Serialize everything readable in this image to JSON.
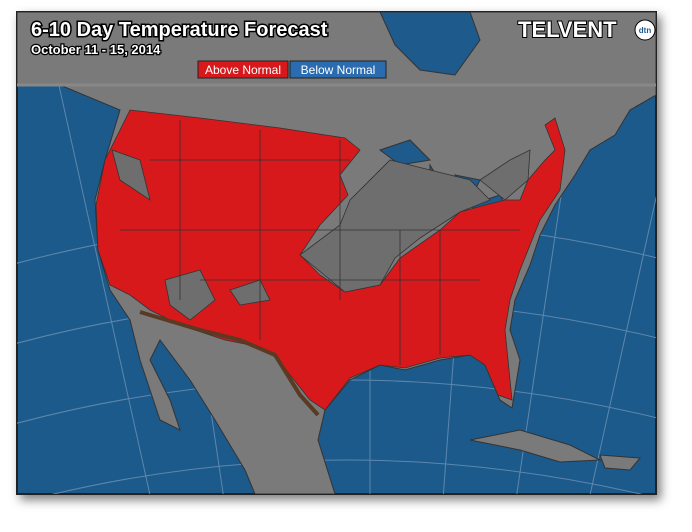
{
  "header": {
    "title": "6-10 Day Temperature Forecast",
    "subtitle": "October 11 - 15, 2014",
    "logo": "TELVENT",
    "logo_badge": "dtn"
  },
  "legend": {
    "items": [
      {
        "label": "Above Normal",
        "color": "#d7191c"
      },
      {
        "label": "Below Normal",
        "color": "#2b6cb0"
      }
    ]
  }
}
